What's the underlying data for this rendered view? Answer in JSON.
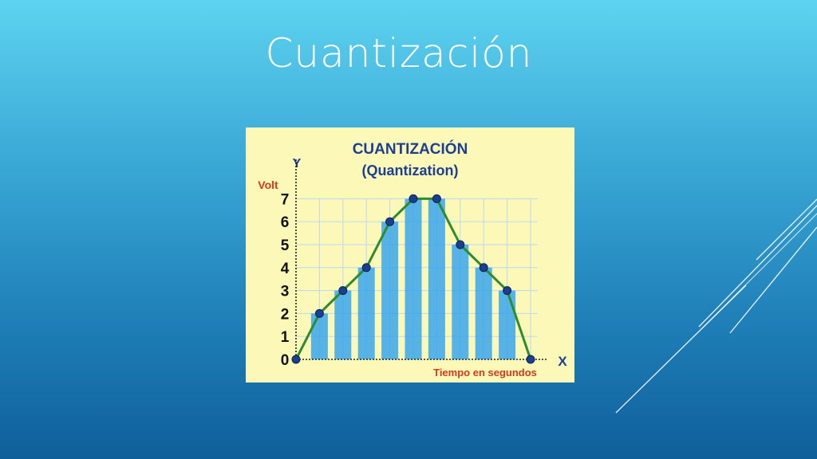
{
  "slide": {
    "title": "Cuantización"
  },
  "chart_data": {
    "type": "bar",
    "title": "CUANTIZACIÓN",
    "subtitle": "(Quantization)",
    "y_axis_letter": "Y",
    "x_axis_letter": "X",
    "ylabel": "Volt",
    "xlabel": "Tiempo en segundos",
    "ylim": [
      0,
      7
    ],
    "yticks": [
      "0",
      "1",
      "2",
      "3",
      "4",
      "5",
      "6",
      "7"
    ],
    "x": [
      0,
      1,
      2,
      3,
      4,
      5,
      6,
      7,
      8,
      9,
      10
    ],
    "values": [
      0,
      2,
      3,
      4,
      6,
      7,
      7,
      5,
      4,
      3,
      0
    ],
    "grid": true,
    "colors": {
      "bars": "#39a6ec",
      "line": "#2e8b2e",
      "points": "#1a3f8f",
      "axis_letters": "#1c3f94",
      "axis_title": "#d23a1b",
      "title": "#1c3f94",
      "grid": "#bcd9ef",
      "background": "#fbf8b8"
    }
  }
}
